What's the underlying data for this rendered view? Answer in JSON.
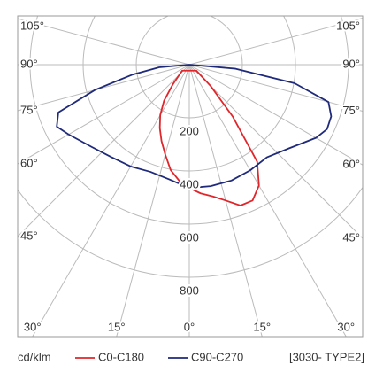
{
  "chart_data": {
    "type": "polar",
    "unit_label": "cd/klm",
    "note": "[3030- TYPE2]",
    "rlim": [
      0,
      1000
    ],
    "rticks": [
      200,
      400,
      600,
      800
    ],
    "angle_ticks": [
      {
        "value": 0,
        "label": "0°"
      },
      {
        "value": 15,
        "label": "15°"
      },
      {
        "value": 30,
        "label": "30°"
      },
      {
        "value": 45,
        "label": "45°"
      },
      {
        "value": 60,
        "label": "60°"
      },
      {
        "value": 75,
        "label": "75°"
      },
      {
        "value": 90,
        "label": "90°"
      },
      {
        "value": 105,
        "label": "105°"
      }
    ],
    "grid": true,
    "series": [
      {
        "name": "C0-C180",
        "color": "#e0262b",
        "angles": [
          -50,
          -40,
          -35,
          -30,
          -25,
          -20,
          -15,
          -10,
          -5,
          0,
          5,
          10,
          15,
          20,
          25,
          30,
          35,
          40,
          45,
          50
        ],
        "values": [
          35,
          96,
          166,
          219,
          263,
          306,
          350,
          403,
          438,
          464,
          486,
          503,
          529,
          564,
          564,
          525,
          446,
          254,
          114,
          35
        ]
      },
      {
        "name": "C90-C270",
        "color": "#1f2a7a",
        "angles": [
          -90,
          -85,
          -80,
          -75,
          -70,
          -65,
          -60,
          -50,
          -40,
          -30,
          -20,
          -10,
          0,
          10,
          20,
          30,
          40,
          50,
          60,
          65,
          70,
          75,
          80,
          85,
          90
        ],
        "values": [
          0,
          114,
          219,
          368,
          525,
          551,
          525,
          481,
          455,
          442,
          429,
          438,
          464,
          464,
          464,
          459,
          455,
          490,
          551,
          573,
          569,
          543,
          403,
          175,
          0
        ]
      }
    ]
  }
}
